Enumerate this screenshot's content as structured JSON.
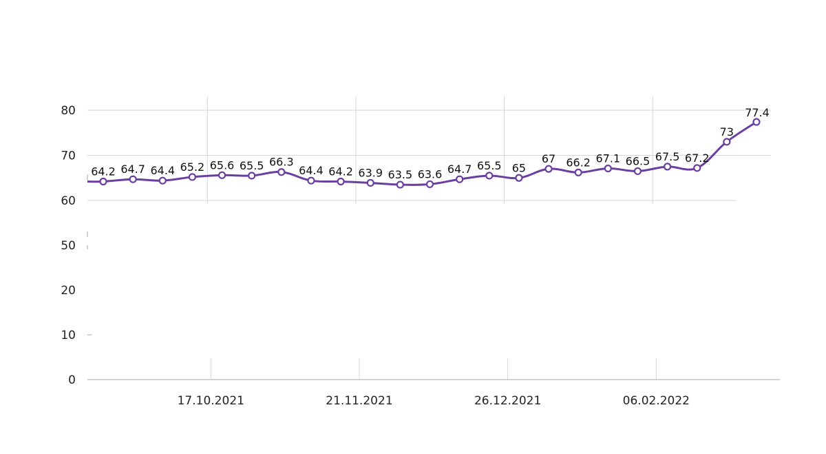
{
  "chart_data": {
    "type": "line",
    "title": "",
    "xlabel": "",
    "ylabel": "",
    "y_ticks": [
      0,
      10,
      20,
      50,
      60,
      70,
      80
    ],
    "axis_break": "between 20 and 50",
    "x_tick_labels": [
      {
        "label": "17.10.2021",
        "at_point": 3.6
      },
      {
        "label": "21.11.2021",
        "at_point": 8.6
      },
      {
        "label": "26.12.2021",
        "at_point": 13.6
      },
      {
        "label": "06.02.2022",
        "at_point": 18.6
      }
    ],
    "grid": true,
    "series": [
      {
        "color": "#6b3fa0",
        "values": [
          64.2,
          64.7,
          64.4,
          65.2,
          65.6,
          65.5,
          66.3,
          64.4,
          64.2,
          63.9,
          63.5,
          63.6,
          64.7,
          65.5,
          65,
          67,
          66.2,
          67.1,
          66.5,
          67.5,
          67.2,
          73,
          77.4
        ],
        "labels": [
          "64.2",
          "64.7",
          "64.4",
          "65.2",
          "65.6",
          "65.5",
          "66.3",
          "64.4",
          "64.2",
          "63.9",
          "63.5",
          "63.6",
          "64.7",
          "65.5",
          "65",
          "67",
          "66.2",
          "67.1",
          "66.5",
          "67.5",
          "67.2",
          "73",
          "77.4"
        ]
      }
    ]
  }
}
